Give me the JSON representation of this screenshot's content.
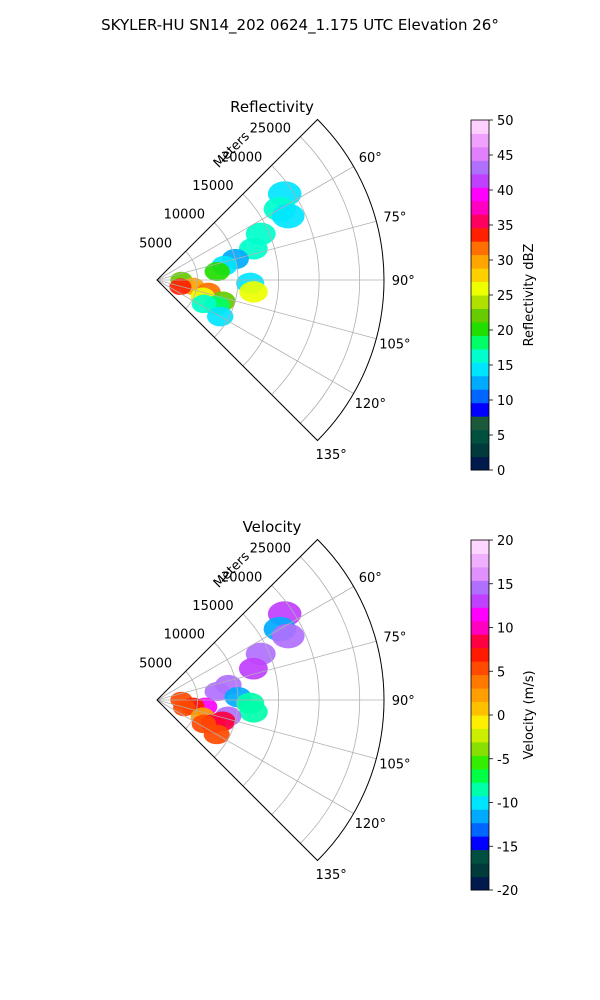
{
  "figure_title": "SKYLER-HU  SN14_202  0624_1.175 UTC Elevation 26°",
  "chart_data": [
    {
      "type": "heatmap",
      "title": "Reflectivity",
      "radial_axis_label": "Meters",
      "range_ticks": [
        5000,
        10000,
        15000,
        20000,
        25000
      ],
      "azimuth_ticks": [
        "60°",
        "75°",
        "90°",
        "105°",
        "120°",
        "135°"
      ],
      "azimuth_range": [
        45,
        135
      ],
      "range_max": 28000,
      "grid": true,
      "colorbar": {
        "label": "Reflectivity dBZ",
        "min": 0,
        "max": 50,
        "ticks": [
          0,
          5,
          10,
          15,
          20,
          25,
          30,
          35,
          40,
          45,
          50
        ],
        "colors": [
          "#001a4d",
          "#003a3a",
          "#005040",
          "#1a5a3a",
          "#0000ff",
          "#0066ff",
          "#00aaff",
          "#00e5ff",
          "#00ffcc",
          "#00ff66",
          "#22dd00",
          "#66cc00",
          "#b0e000",
          "#eeff00",
          "#ffd000",
          "#ffa500",
          "#ff7000",
          "#ff2000",
          "#ff0060",
          "#ff00c0",
          "#ff00ff",
          "#c040ff",
          "#b070ff",
          "#e080ff",
          "#f0a0ff",
          "#ffd0ff"
        ]
      },
      "echo_cells": [
        {
          "az": 56,
          "range": 19000,
          "value": 14
        },
        {
          "az": 60,
          "range": 17500,
          "value": 16
        },
        {
          "az": 64,
          "range": 18000,
          "value": 15
        },
        {
          "az": 66,
          "range": 14000,
          "value": 17
        },
        {
          "az": 72,
          "range": 12500,
          "value": 16
        },
        {
          "az": 75,
          "range": 10000,
          "value": 12
        },
        {
          "az": 78,
          "range": 8500,
          "value": 14
        },
        {
          "az": 82,
          "range": 7500,
          "value": 20
        },
        {
          "az": 90,
          "range": 3000,
          "value": 22
        },
        {
          "az": 92,
          "range": 11500,
          "value": 15
        },
        {
          "az": 97,
          "range": 12000,
          "value": 26
        },
        {
          "az": 100,
          "range": 4500,
          "value": 30
        },
        {
          "az": 103,
          "range": 6500,
          "value": 32
        },
        {
          "az": 106,
          "range": 3000,
          "value": 33
        },
        {
          "az": 108,
          "range": 8500,
          "value": 22
        },
        {
          "az": 110,
          "range": 6000,
          "value": 26
        },
        {
          "az": 113,
          "range": 8000,
          "value": 18
        },
        {
          "az": 117,
          "range": 6500,
          "value": 17
        },
        {
          "az": 120,
          "range": 9000,
          "value": 15
        }
      ]
    },
    {
      "type": "heatmap",
      "title": "Velocity",
      "radial_axis_label": "Meters",
      "range_ticks": [
        5000,
        10000,
        15000,
        20000,
        25000
      ],
      "azimuth_ticks": [
        "60°",
        "75°",
        "90°",
        "105°",
        "120°",
        "135°"
      ],
      "azimuth_range": [
        45,
        135
      ],
      "range_max": 28000,
      "grid": true,
      "colorbar": {
        "label": "Velocity (m/s)",
        "min": -20,
        "max": 20,
        "ticks": [
          -20,
          -15,
          -10,
          -5,
          0,
          5,
          10,
          15,
          20
        ],
        "colors": [
          "#001a4d",
          "#003a3a",
          "#005040",
          "#0000ff",
          "#0066ff",
          "#00aaff",
          "#00e5ff",
          "#00ffaa",
          "#00ff44",
          "#33ee00",
          "#88e000",
          "#ccee00",
          "#ffee00",
          "#ffc000",
          "#ffa000",
          "#ff7800",
          "#ff4a00",
          "#ff1a00",
          "#ff0040",
          "#ff00c0",
          "#ff00ff",
          "#c040ff",
          "#b070ff",
          "#e090ff",
          "#f0b0ff",
          "#ffd6ff"
        ]
      },
      "echo_cells": [
        {
          "az": 56,
          "range": 19000,
          "value": 13
        },
        {
          "az": 60,
          "range": 17500,
          "value": -11
        },
        {
          "az": 64,
          "range": 18000,
          "value": 14
        },
        {
          "az": 66,
          "range": 14000,
          "value": 14
        },
        {
          "az": 72,
          "range": 12500,
          "value": 13
        },
        {
          "az": 78,
          "range": 9000,
          "value": 14
        },
        {
          "az": 82,
          "range": 7500,
          "value": 14
        },
        {
          "az": 88,
          "range": 10000,
          "value": -12
        },
        {
          "az": 90,
          "range": 3000,
          "value": 6
        },
        {
          "az": 92,
          "range": 11500,
          "value": -9
        },
        {
          "az": 97,
          "range": 12000,
          "value": -9
        },
        {
          "az": 98,
          "range": 6000,
          "value": 11
        },
        {
          "az": 100,
          "range": 4500,
          "value": 7
        },
        {
          "az": 103,
          "range": 9000,
          "value": 14
        },
        {
          "az": 106,
          "range": 3500,
          "value": 5
        },
        {
          "az": 108,
          "range": 8500,
          "value": 9
        },
        {
          "az": 110,
          "range": 6000,
          "value": 3
        },
        {
          "az": 113,
          "range": 7500,
          "value": 8
        },
        {
          "az": 117,
          "range": 6500,
          "value": 5
        },
        {
          "az": 120,
          "range": 8500,
          "value": 6
        }
      ]
    }
  ]
}
